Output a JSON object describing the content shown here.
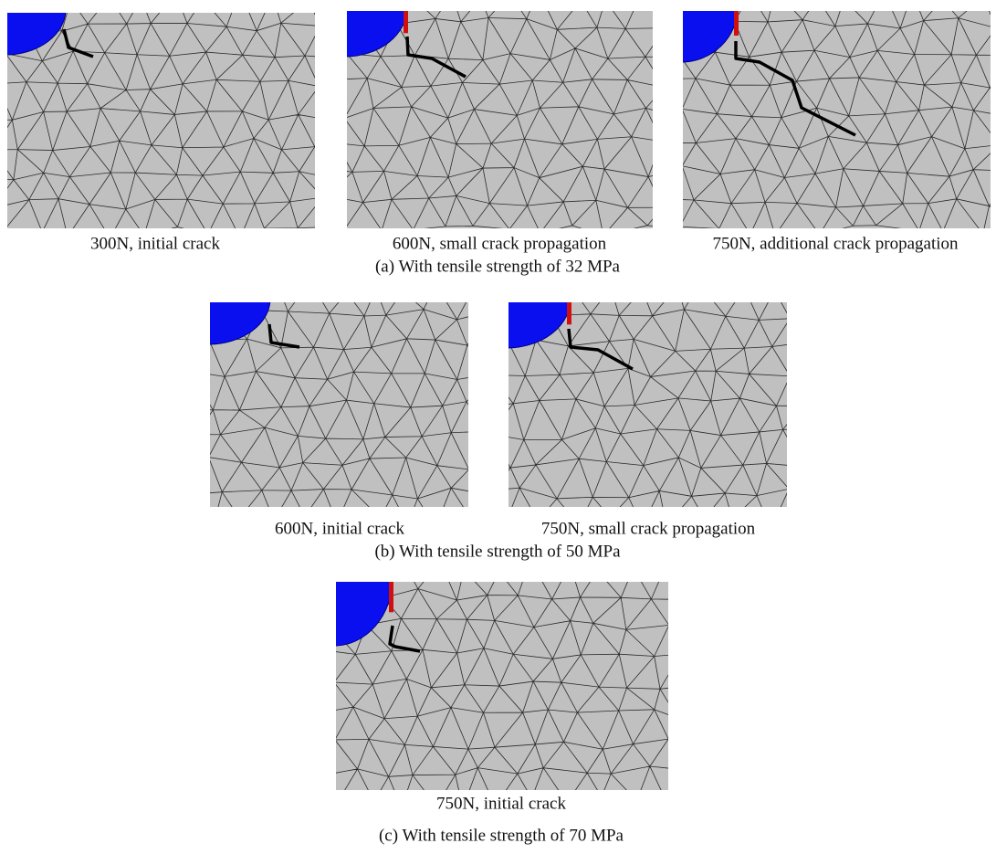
{
  "figure": {
    "groups": [
      {
        "panels": [
          {
            "caption": "300N, initial crack"
          },
          {
            "caption": "600N, small crack propagation"
          },
          {
            "caption": "750N, additional crack propagation"
          }
        ],
        "caption": "(a) With tensile strength of 32 MPa"
      },
      {
        "panels": [
          {
            "caption": "600N, initial crack"
          },
          {
            "caption": "750N, small crack propagation"
          }
        ],
        "caption": "(b) With tensile strength of 50 MPa"
      },
      {
        "panels": [
          {
            "caption": "750N, initial crack"
          }
        ],
        "caption": "(c) With tensile strength of 70 MPa"
      }
    ]
  }
}
